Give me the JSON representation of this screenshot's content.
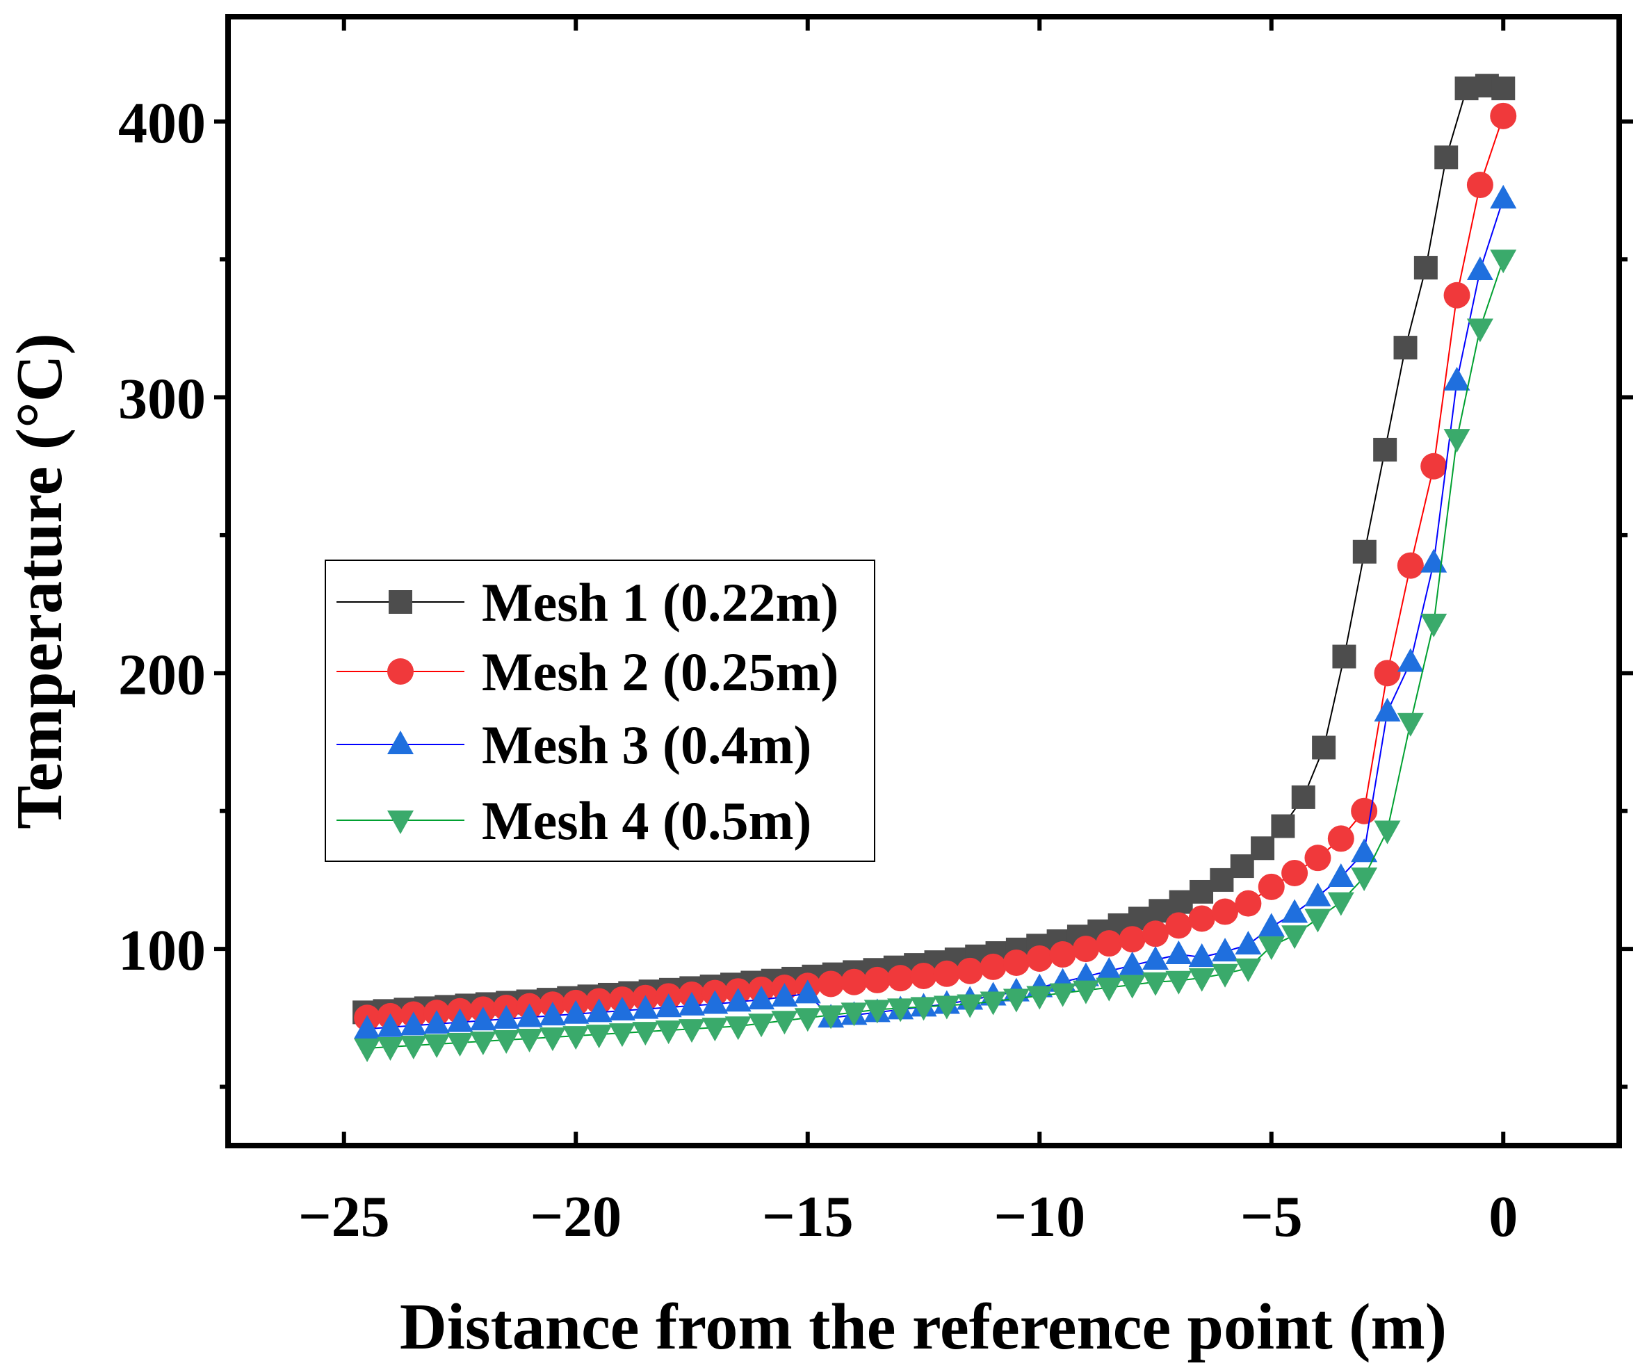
{
  "chart_data": {
    "type": "line",
    "title": "",
    "xlabel": "Distance from the reference point (m)",
    "ylabel": "Temperature (°C)",
    "xlim": [
      -27.5,
      2.5
    ],
    "ylim": [
      28.7,
      438
    ],
    "xticks": [
      -25,
      -20,
      -15,
      -10,
      -5,
      0
    ],
    "xtick_labels": [
      "−25",
      "−20",
      "−15",
      "−10",
      "−5",
      "0"
    ],
    "yticks": [
      100,
      200,
      300,
      400
    ],
    "ytick_labels": [
      "100",
      "200",
      "300",
      "400"
    ],
    "y_minor_ticks": [
      50,
      150,
      250,
      350
    ],
    "grid": false,
    "legend_position": "center-left",
    "series": [
      {
        "name": "Mesh 1 (0.22m)",
        "marker": "square",
        "color": "#4d4d4d",
        "line_color": "#000000",
        "x": [
          -24.56,
          -24.12,
          -23.67,
          -23.23,
          -22.79,
          -22.35,
          -21.91,
          -21.47,
          -21.03,
          -20.59,
          -20.15,
          -19.71,
          -19.27,
          -18.83,
          -18.39,
          -17.95,
          -17.51,
          -17.07,
          -16.63,
          -16.19,
          -15.75,
          -15.31,
          -14.87,
          -14.43,
          -13.99,
          -13.55,
          -13.11,
          -12.67,
          -12.23,
          -11.79,
          -11.35,
          -10.91,
          -10.47,
          -10.03,
          -9.59,
          -9.15,
          -8.71,
          -8.27,
          -7.83,
          -7.39,
          -6.95,
          -6.51,
          -6.07,
          -5.63,
          -5.19,
          -4.75,
          -4.31,
          -3.87,
          -3.43,
          -2.99,
          -2.55,
          -2.11,
          -1.67,
          -1.23,
          -0.79,
          -0.35,
          0.0
        ],
        "y": [
          77,
          77.5,
          78,
          78.5,
          79,
          79.5,
          80,
          80.5,
          81,
          81.6,
          82.2,
          82.8,
          83.4,
          84,
          84.6,
          85.2,
          85.8,
          86.4,
          87.1,
          87.8,
          88.5,
          89.2,
          90,
          90.8,
          91.6,
          92.4,
          93.3,
          94.2,
          95.2,
          96.2,
          97.3,
          98.5,
          99.8,
          101.2,
          102.8,
          104.5,
          106.4,
          108.6,
          111,
          113.8,
          117,
          120.7,
          125,
          130,
          136.5,
          144.5,
          155,
          173,
          206,
          244,
          281,
          318,
          347,
          387,
          412,
          413,
          412
        ]
      },
      {
        "name": "Mesh 2 (0.25m)",
        "marker": "circle",
        "color": "#f0393b",
        "line_color": "#ff0000",
        "x": [
          -24.5,
          -24.0,
          -23.5,
          -23.0,
          -22.5,
          -22.0,
          -21.5,
          -21.0,
          -20.5,
          -20.0,
          -19.5,
          -19.0,
          -18.5,
          -18.0,
          -17.5,
          -17.0,
          -16.5,
          -16.0,
          -15.5,
          -15.0,
          -14.5,
          -14.0,
          -13.5,
          -13.0,
          -12.5,
          -12.0,
          -11.5,
          -11.0,
          -10.5,
          -10.0,
          -9.5,
          -9.0,
          -8.5,
          -8.0,
          -7.5,
          -7.0,
          -6.5,
          -6.0,
          -5.5,
          -5.0,
          -4.5,
          -4.0,
          -3.5,
          -3.0,
          -2.5,
          -2.0,
          -1.5,
          -1.0,
          -0.5,
          0.0
        ],
        "y": [
          75,
          75.6,
          76.2,
          76.8,
          77.4,
          78,
          78.6,
          79.2,
          79.8,
          80.4,
          81,
          81.6,
          82.2,
          82.8,
          83.4,
          84,
          84.6,
          85.2,
          85.9,
          86.6,
          87.3,
          88,
          88.7,
          89.4,
          90.2,
          91,
          92,
          93.5,
          95,
          96.5,
          98,
          100,
          102,
          103.5,
          105.5,
          108.5,
          111,
          113.5,
          116.5,
          122.5,
          127.5,
          133,
          140,
          150,
          200,
          239,
          275,
          337,
          377,
          402
        ]
      },
      {
        "name": "Mesh 3 (0.4m)",
        "marker": "triangle-up",
        "color": "#1f6fde",
        "line_color": "#0000ff",
        "x": [
          -24.5,
          -24.0,
          -23.5,
          -23.0,
          -22.5,
          -22.0,
          -21.5,
          -21.0,
          -20.5,
          -20.0,
          -19.5,
          -19.0,
          -18.5,
          -18.0,
          -17.5,
          -17.0,
          -16.5,
          -16.0,
          -15.5,
          -15.0,
          -14.5,
          -14.0,
          -13.5,
          -13.0,
          -12.5,
          -12.0,
          -11.5,
          -11.0,
          -10.5,
          -10.0,
          -9.5,
          -9.0,
          -8.5,
          -8.0,
          -7.5,
          -7.0,
          -6.5,
          -6.0,
          -5.5,
          -5.0,
          -4.5,
          -4.0,
          -3.5,
          -3.0,
          -2.5,
          -2.0,
          -1.5,
          -1.0,
          -0.5,
          0.0
        ],
        "y": [
          71,
          71.6,
          72.2,
          72.8,
          73.4,
          74,
          74.6,
          75.2,
          75.8,
          76.4,
          77,
          77.6,
          78.2,
          78.8,
          79.4,
          80,
          80.8,
          81.6,
          82.6,
          83.8,
          75,
          76,
          77,
          78,
          79,
          80,
          81.5,
          83,
          84.5,
          86,
          88,
          90,
          92,
          94,
          96,
          98,
          97,
          99,
          101.5,
          108,
          113,
          119,
          126,
          135,
          186,
          204,
          240,
          306,
          346,
          372
        ]
      },
      {
        "name": "Mesh 4 (0.5m)",
        "marker": "triangle-down",
        "color": "#3aaa6b",
        "line_color": "#00a030",
        "x": [
          -24.5,
          -24.0,
          -23.5,
          -23.0,
          -22.5,
          -22.0,
          -21.5,
          -21.0,
          -20.5,
          -20.0,
          -19.5,
          -19.0,
          -18.5,
          -18.0,
          -17.5,
          -17.0,
          -16.5,
          -16.0,
          -15.5,
          -15.0,
          -14.5,
          -14.0,
          -13.5,
          -13.0,
          -12.5,
          -12.0,
          -11.5,
          -11.0,
          -10.5,
          -10.0,
          -9.5,
          -9.0,
          -8.5,
          -8.0,
          -7.5,
          -7.0,
          -6.5,
          -6.0,
          -5.5,
          -5.0,
          -4.5,
          -4.0,
          -3.5,
          -3.0,
          -2.5,
          -2.0,
          -1.5,
          -1.0,
          -0.5,
          0.0
        ],
        "y": [
          64,
          64.5,
          65,
          65.5,
          66,
          66.5,
          67,
          67.5,
          68,
          68.5,
          69,
          69.5,
          70,
          70.5,
          71,
          71.5,
          72,
          73,
          74,
          75,
          76,
          77,
          78,
          78.5,
          79,
          79.5,
          80,
          81,
          82,
          83,
          84,
          85,
          86,
          87,
          88,
          88.5,
          89.5,
          91,
          93,
          101,
          105,
          111,
          117,
          126,
          143,
          182,
          218,
          285,
          325,
          350
        ]
      }
    ]
  }
}
